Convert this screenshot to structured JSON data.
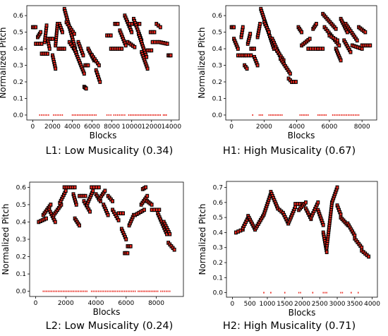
{
  "chart_data": [
    {
      "id": "L1",
      "type": "scatter",
      "caption": "L1: Low Musicality (0.34)",
      "xlabel": "Blocks",
      "ylabel": "Normalized Pitch",
      "xlim": [
        -600,
        14800
      ],
      "ylim": [
        -0.03,
        0.66
      ],
      "xticks": [
        0,
        2000,
        4000,
        6000,
        8000,
        10000,
        12000,
        14000
      ],
      "yticks": [
        0.0,
        0.1,
        0.2,
        0.3,
        0.4,
        0.5,
        0.6
      ],
      "grid": false,
      "colors": {
        "fill": "#e8261c",
        "edge": "#000000"
      },
      "segments": [
        [
          0,
          0.53,
          300,
          0.53
        ],
        [
          300,
          0.43,
          900,
          0.43
        ],
        [
          500,
          0.47,
          800,
          0.5
        ],
        [
          900,
          0.37,
          1500,
          0.37
        ],
        [
          1200,
          0.44,
          1400,
          0.54
        ],
        [
          1500,
          0.46,
          1700,
          0.4
        ],
        [
          1700,
          0.46,
          2000,
          0.46
        ],
        [
          2000,
          0.36,
          2300,
          0.28
        ],
        [
          2300,
          0.42,
          2500,
          0.55
        ],
        [
          2600,
          0.4,
          3200,
          0.4
        ],
        [
          2700,
          0.55,
          3000,
          0.5
        ],
        [
          3200,
          0.64,
          4300,
          0.4
        ],
        [
          3400,
          0.56,
          4200,
          0.49
        ],
        [
          3700,
          0.44,
          4400,
          0.38
        ],
        [
          4200,
          0.4,
          5200,
          0.25
        ],
        [
          4600,
          0.44,
          5100,
          0.36
        ],
        [
          5200,
          0.17,
          5400,
          0.16
        ],
        [
          5300,
          0.3,
          5600,
          0.3
        ],
        [
          5600,
          0.4,
          6200,
          0.33
        ],
        [
          6000,
          0.36,
          6700,
          0.3
        ],
        [
          6400,
          0.27,
          6800,
          0.2
        ],
        [
          7500,
          0.48,
          7900,
          0.48
        ],
        [
          7900,
          0.4,
          9000,
          0.4
        ],
        [
          8300,
          0.55,
          8600,
          0.55
        ],
        [
          8800,
          0.51,
          9400,
          0.42
        ],
        [
          9300,
          0.6,
          10000,
          0.5
        ],
        [
          9600,
          0.44,
          10300,
          0.41
        ],
        [
          9800,
          0.55,
          10800,
          0.55
        ],
        [
          10200,
          0.58,
          11000,
          0.45
        ],
        [
          10700,
          0.49,
          11500,
          0.35
        ],
        [
          11000,
          0.38,
          11600,
          0.28
        ],
        [
          11600,
          0.39,
          12000,
          0.39
        ],
        [
          11900,
          0.5,
          12300,
          0.5
        ],
        [
          12100,
          0.44,
          12600,
          0.44
        ],
        [
          12500,
          0.55,
          12900,
          0.53
        ],
        [
          12800,
          0.44,
          13600,
          0.43
        ],
        [
          13700,
          0.36,
          13950,
          0.36
        ]
      ],
      "baseline": [
        [
          700,
          1600
        ],
        [
          2100,
          3000
        ],
        [
          4000,
          6400
        ],
        [
          7500,
          7900
        ],
        [
          8200,
          9300
        ],
        [
          9700,
          12900
        ],
        [
          13200,
          13500
        ]
      ]
    },
    {
      "id": "H1",
      "type": "scatter",
      "caption": "H1: High Musicality (0.67)",
      "xlabel": "Blocks",
      "ylabel": "Normalized Pitch",
      "xlim": [
        -350,
        8900
      ],
      "ylim": [
        -0.03,
        0.66
      ],
      "xticks": [
        0,
        2000,
        4000,
        6000,
        8000
      ],
      "yticks": [
        0.0,
        0.1,
        0.2,
        0.3,
        0.4,
        0.5,
        0.6
      ],
      "grid": false,
      "colors": {
        "fill": "#e8261c",
        "edge": "#000000"
      },
      "segments": [
        [
          0,
          0.53,
          150,
          0.53
        ],
        [
          150,
          0.46,
          400,
          0.4
        ],
        [
          400,
          0.36,
          800,
          0.36
        ],
        [
          600,
          0.47,
          700,
          0.53
        ],
        [
          800,
          0.3,
          950,
          0.28
        ],
        [
          900,
          0.36,
          1200,
          0.36
        ],
        [
          1000,
          0.43,
          1150,
          0.49
        ],
        [
          1200,
          0.4,
          1400,
          0.4
        ],
        [
          1400,
          0.35,
          1600,
          0.3
        ],
        [
          1600,
          0.47,
          1750,
          0.55
        ],
        [
          1800,
          0.64,
          2600,
          0.4
        ],
        [
          2000,
          0.56,
          2300,
          0.5
        ],
        [
          2500,
          0.46,
          3000,
          0.35
        ],
        [
          2700,
          0.4,
          3200,
          0.33
        ],
        [
          3000,
          0.34,
          3600,
          0.25
        ],
        [
          3500,
          0.22,
          3700,
          0.2
        ],
        [
          3700,
          0.2,
          3950,
          0.2
        ],
        [
          4100,
          0.53,
          4300,
          0.5
        ],
        [
          4300,
          0.42,
          4800,
          0.46
        ],
        [
          4700,
          0.4,
          5300,
          0.4
        ],
        [
          5000,
          0.52,
          5200,
          0.55
        ],
        [
          5300,
          0.4,
          5600,
          0.4
        ],
        [
          5600,
          0.61,
          6400,
          0.52
        ],
        [
          5700,
          0.53,
          6600,
          0.42
        ],
        [
          6000,
          0.48,
          6500,
          0.45
        ],
        [
          6400,
          0.4,
          6700,
          0.33
        ],
        [
          6700,
          0.58,
          7100,
          0.5
        ],
        [
          6900,
          0.45,
          7300,
          0.38
        ],
        [
          7000,
          0.55,
          7700,
          0.45
        ],
        [
          7400,
          0.42,
          8000,
          0.4
        ],
        [
          7800,
          0.53,
          8200,
          0.5
        ],
        [
          8000,
          0.42,
          8500,
          0.42
        ]
      ],
      "baseline": [
        [
          1300,
          1300
        ],
        [
          1700,
          1900
        ],
        [
          2300,
          3100
        ],
        [
          4200,
          4700
        ],
        [
          5300,
          5800
        ],
        [
          6200,
          7800
        ]
      ]
    },
    {
      "id": "L2",
      "type": "scatter",
      "caption": "L2: Low Musicality (0.24)",
      "xlabel": "Blocks",
      "ylabel": "Normalized Pitch",
      "xlim": [
        -400,
        9800
      ],
      "ylim": [
        -0.03,
        0.63
      ],
      "xticks": [
        0,
        2000,
        4000,
        6000,
        8000
      ],
      "yticks": [
        0.0,
        0.1,
        0.2,
        0.3,
        0.4,
        0.5,
        0.6
      ],
      "grid": false,
      "colors": {
        "fill": "#e8261c",
        "edge": "#000000"
      },
      "segments": [
        [
          200,
          0.4,
          700,
          0.42
        ],
        [
          500,
          0.44,
          1000,
          0.5
        ],
        [
          900,
          0.47,
          1300,
          0.4
        ],
        [
          1200,
          0.44,
          1700,
          0.5
        ],
        [
          1600,
          0.51,
          2000,
          0.58
        ],
        [
          1900,
          0.6,
          2600,
          0.6
        ],
        [
          2500,
          0.56,
          2700,
          0.5
        ],
        [
          2600,
          0.42,
          2900,
          0.38
        ],
        [
          2900,
          0.55,
          3300,
          0.55
        ],
        [
          3200,
          0.52,
          3600,
          0.46
        ],
        [
          3400,
          0.5,
          3800,
          0.58
        ],
        [
          3700,
          0.6,
          4200,
          0.6
        ],
        [
          4000,
          0.56,
          4300,
          0.52
        ],
        [
          4200,
          0.53,
          4600,
          0.58
        ],
        [
          4500,
          0.5,
          4800,
          0.44
        ],
        [
          4800,
          0.55,
          5100,
          0.52
        ],
        [
          5100,
          0.47,
          5500,
          0.41
        ],
        [
          5500,
          0.45,
          5800,
          0.45
        ],
        [
          5700,
          0.36,
          6000,
          0.3
        ],
        [
          5900,
          0.22,
          6100,
          0.22
        ],
        [
          6100,
          0.26,
          6300,
          0.26
        ],
        [
          6200,
          0.38,
          6500,
          0.44
        ],
        [
          6600,
          0.44,
          7200,
          0.47
        ],
        [
          7000,
          0.5,
          7400,
          0.55
        ],
        [
          7100,
          0.59,
          7300,
          0.6
        ],
        [
          7400,
          0.52,
          7700,
          0.5
        ],
        [
          7700,
          0.47,
          8200,
          0.47
        ],
        [
          8100,
          0.45,
          8700,
          0.33
        ],
        [
          8500,
          0.4,
          8900,
          0.33
        ],
        [
          8800,
          0.28,
          9200,
          0.24
        ]
      ],
      "baseline": [
        [
          500,
          3400
        ],
        [
          3700,
          5100
        ],
        [
          5200,
          6600
        ],
        [
          6800,
          8100
        ],
        [
          8300,
          8900
        ]
      ]
    },
    {
      "id": "H2",
      "type": "scatter",
      "caption": "H2: High Musicality (0.71)",
      "xlabel": "Blocks",
      "ylabel": "Normalized Pitch",
      "xlim": [
        -170,
        4150
      ],
      "ylim": [
        -0.03,
        0.74
      ],
      "xticks": [
        0,
        500,
        1000,
        1500,
        2000,
        2500,
        3000,
        3500,
        4000
      ],
      "yticks": [
        0.0,
        0.1,
        0.2,
        0.3,
        0.4,
        0.5,
        0.6,
        0.7
      ],
      "grid": false,
      "colors": {
        "fill": "#e8261c",
        "edge": "#000000"
      },
      "segments": [
        [
          100,
          0.4,
          300,
          0.42
        ],
        [
          300,
          0.43,
          450,
          0.5
        ],
        [
          450,
          0.51,
          650,
          0.42
        ],
        [
          650,
          0.42,
          900,
          0.52
        ],
        [
          900,
          0.52,
          1100,
          0.66
        ],
        [
          1100,
          0.67,
          1300,
          0.56
        ],
        [
          1300,
          0.56,
          1450,
          0.53
        ],
        [
          1450,
          0.53,
          1600,
          0.46
        ],
        [
          1600,
          0.46,
          1800,
          0.57
        ],
        [
          1800,
          0.59,
          2000,
          0.59
        ],
        [
          1900,
          0.55,
          2100,
          0.6
        ],
        [
          2100,
          0.56,
          2250,
          0.49
        ],
        [
          2250,
          0.5,
          2450,
          0.6
        ],
        [
          2450,
          0.55,
          2600,
          0.45
        ],
        [
          2600,
          0.4,
          2700,
          0.27
        ],
        [
          2700,
          0.3,
          2850,
          0.6
        ],
        [
          2850,
          0.6,
          3000,
          0.7
        ],
        [
          3000,
          0.58,
          3100,
          0.52
        ],
        [
          3100,
          0.5,
          3300,
          0.45
        ],
        [
          3300,
          0.46,
          3500,
          0.38
        ],
        [
          3500,
          0.36,
          3700,
          0.3
        ],
        [
          3700,
          0.28,
          3900,
          0.24
        ]
      ],
      "baseline": [
        [
          900,
          900
        ],
        [
          1100,
          1100
        ],
        [
          1500,
          1500
        ],
        [
          1900,
          1950
        ],
        [
          2300,
          2300
        ],
        [
          2600,
          2700
        ],
        [
          3100,
          3150
        ],
        [
          3400,
          3400
        ],
        [
          3600,
          3600
        ]
      ]
    }
  ]
}
